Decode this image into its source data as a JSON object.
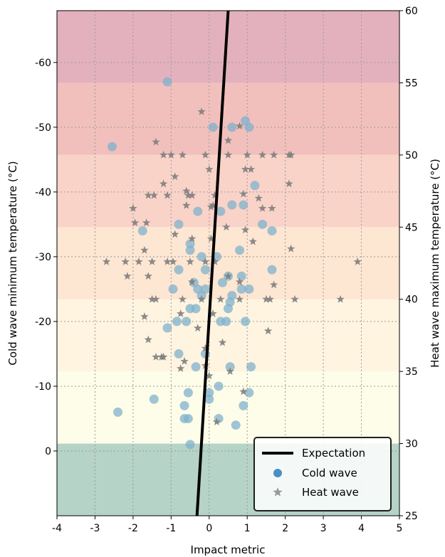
{
  "chart_data": {
    "type": "scatter",
    "title": "",
    "xlabel": "Impact metric",
    "ylabel_left": "Cold wave minimum temperature (°C)",
    "ylabel_right": "Heat wave maximum temperature (°C)",
    "xlim": [
      -4,
      5
    ],
    "ylim_left": [
      10,
      -68
    ],
    "ylim_right": [
      25,
      60
    ],
    "x_ticks": [
      -4,
      -3,
      -2,
      -1,
      0,
      1,
      2,
      3,
      4,
      5
    ],
    "left_y_ticks": [
      -60,
      -50,
      -40,
      -30,
      -20,
      -10,
      0
    ],
    "right_y_ticks": [
      25,
      30,
      35,
      40,
      45,
      50,
      55,
      60
    ],
    "grid": true,
    "legend_position": "bottom-right",
    "background_bands": [
      {
        "from": 25,
        "to": 30,
        "color": "#b5d3c6"
      },
      {
        "from": 30,
        "to": 35,
        "color": "#fdfde9"
      },
      {
        "from": 35,
        "to": 40,
        "color": "#fef4e0"
      },
      {
        "from": 40,
        "to": 45,
        "color": "#fde6d2"
      },
      {
        "from": 45,
        "to": 50,
        "color": "#f9d3c8"
      },
      {
        "from": 50,
        "to": 55,
        "color": "#f2c0bc"
      },
      {
        "from": 55,
        "to": 60,
        "color": "#e3b1bd"
      }
    ],
    "expectation_line": {
      "name": "Expectation",
      "left_axis_points": [
        [
          -0.32,
          10
        ],
        [
          0.5,
          -68
        ]
      ],
      "color": "#000000"
    },
    "series": [
      {
        "name": "Cold wave",
        "marker": "circle",
        "axis": "left",
        "color": "#7fb2cc",
        "legend_color": "#4a8fc4",
        "points": [
          [
            -1.1,
            -57
          ],
          [
            -2.55,
            -47
          ],
          [
            0.1,
            -50
          ],
          [
            0.6,
            -50
          ],
          [
            0.95,
            -51
          ],
          [
            1.05,
            -50
          ],
          [
            1.2,
            -41
          ],
          [
            0.9,
            -38
          ],
          [
            0.6,
            -38
          ],
          [
            0.3,
            -37
          ],
          [
            -0.3,
            -37
          ],
          [
            -0.8,
            -35
          ],
          [
            1.4,
            -35
          ],
          [
            1.65,
            -34
          ],
          [
            -1.75,
            -34
          ],
          [
            -0.5,
            -32
          ],
          [
            -0.5,
            -31
          ],
          [
            0.8,
            -31
          ],
          [
            -0.2,
            -30
          ],
          [
            0.2,
            -30
          ],
          [
            1.65,
            -28
          ],
          [
            -0.8,
            -28
          ],
          [
            -0.1,
            -28
          ],
          [
            0.85,
            -27
          ],
          [
            0.5,
            -27
          ],
          [
            -0.4,
            -26
          ],
          [
            0.35,
            -26
          ],
          [
            -0.3,
            -25
          ],
          [
            -0.1,
            -25
          ],
          [
            0.85,
            -25
          ],
          [
            1.05,
            -25
          ],
          [
            -0.95,
            -25
          ],
          [
            -0.2,
            -24
          ],
          [
            0.6,
            -24
          ],
          [
            0.55,
            -23
          ],
          [
            -0.5,
            -22
          ],
          [
            -0.35,
            -22
          ],
          [
            0.5,
            -22
          ],
          [
            -1.1,
            -19
          ],
          [
            -0.85,
            -20
          ],
          [
            -0.6,
            -20
          ],
          [
            0.3,
            -20
          ],
          [
            0.45,
            -20
          ],
          [
            0.95,
            -20
          ],
          [
            -0.8,
            -15
          ],
          [
            -0.1,
            -15
          ],
          [
            -0.35,
            -13
          ],
          [
            0.55,
            -13
          ],
          [
            1.1,
            -13
          ],
          [
            0.25,
            -10
          ],
          [
            -0.55,
            -9
          ],
          [
            0.0,
            -9
          ],
          [
            1.05,
            -9
          ],
          [
            -1.45,
            -8
          ],
          [
            0.0,
            -8
          ],
          [
            -0.65,
            -7
          ],
          [
            0.9,
            -7
          ],
          [
            -2.4,
            -6
          ],
          [
            -0.65,
            -5
          ],
          [
            -0.55,
            -5
          ],
          [
            0.25,
            -5
          ],
          [
            0.7,
            -4
          ],
          [
            -0.5,
            -1
          ]
        ]
      },
      {
        "name": "Heat wave",
        "marker": "star",
        "axis": "right",
        "color": "#7e7e7e",
        "legend_color": "#9a9a9a",
        "points": [
          [
            -0.2,
            53
          ],
          [
            0.8,
            52
          ],
          [
            -1.4,
            50.9
          ],
          [
            0.5,
            51
          ],
          [
            -1.2,
            50
          ],
          [
            -1.0,
            50
          ],
          [
            -0.7,
            50
          ],
          [
            -0.1,
            50
          ],
          [
            0.5,
            50
          ],
          [
            1.0,
            50
          ],
          [
            1.4,
            50
          ],
          [
            1.7,
            50
          ],
          [
            2.1,
            50
          ],
          [
            2.15,
            50
          ],
          [
            0.0,
            49
          ],
          [
            0.95,
            49
          ],
          [
            1.1,
            49
          ],
          [
            -0.9,
            48.5
          ],
          [
            -1.2,
            48
          ],
          [
            2.1,
            48
          ],
          [
            -0.6,
            47.5
          ],
          [
            -1.6,
            47.2
          ],
          [
            -1.45,
            47.2
          ],
          [
            -1.1,
            47.2
          ],
          [
            -0.55,
            47.2
          ],
          [
            -0.45,
            47.2
          ],
          [
            0.15,
            47.2
          ],
          [
            0.9,
            47.3
          ],
          [
            1.3,
            47
          ],
          [
            -2.0,
            46.3
          ],
          [
            -0.6,
            46.5
          ],
          [
            0.1,
            46.5
          ],
          [
            1.4,
            46.3
          ],
          [
            1.65,
            46.3
          ],
          [
            -1.95,
            45.3
          ],
          [
            -1.65,
            45.3
          ],
          [
            0.05,
            46.4
          ],
          [
            0.45,
            45
          ],
          [
            0.95,
            44.8
          ],
          [
            -0.9,
            44.5
          ],
          [
            -0.45,
            44.2
          ],
          [
            0.05,
            44.2
          ],
          [
            1.15,
            44
          ],
          [
            2.15,
            43.5
          ],
          [
            -1.7,
            43.4
          ],
          [
            -2.7,
            42.6
          ],
          [
            -2.2,
            42.6
          ],
          [
            -1.85,
            42.6
          ],
          [
            -1.5,
            42.6
          ],
          [
            -1.1,
            42.6
          ],
          [
            -0.95,
            42.6
          ],
          [
            -0.5,
            42.6
          ],
          [
            -0.1,
            42.6
          ],
          [
            0.15,
            42.6
          ],
          [
            -1.6,
            41.6
          ],
          [
            -2.15,
            41.6
          ],
          [
            0.5,
            41.6
          ],
          [
            -0.45,
            41.2
          ],
          [
            0.8,
            41.2
          ],
          [
            1.7,
            41
          ],
          [
            -1.5,
            40
          ],
          [
            -1.4,
            40
          ],
          [
            -0.7,
            40
          ],
          [
            -0.2,
            40
          ],
          [
            0.3,
            40
          ],
          [
            0.8,
            40
          ],
          [
            1.5,
            40
          ],
          [
            1.6,
            40
          ],
          [
            2.25,
            40
          ],
          [
            3.45,
            40
          ],
          [
            3.9,
            42.6
          ],
          [
            -0.75,
            39
          ],
          [
            0.1,
            39
          ],
          [
            -1.7,
            38.8
          ],
          [
            -0.3,
            38
          ],
          [
            1.55,
            37.8
          ],
          [
            -1.6,
            37.2
          ],
          [
            -1.2,
            36
          ],
          [
            -0.1,
            36.6
          ],
          [
            0.35,
            37
          ],
          [
            -1.25,
            36
          ],
          [
            -1.4,
            36
          ],
          [
            -0.65,
            35.7
          ],
          [
            -0.1,
            35.4
          ],
          [
            -0.75,
            35.2
          ],
          [
            0.0,
            34.7
          ],
          [
            0.55,
            35
          ],
          [
            0.9,
            33.6
          ],
          [
            0.2,
            31.5
          ]
        ]
      }
    ]
  },
  "legend": {
    "items": [
      {
        "label": "Expectation"
      },
      {
        "label": "Cold wave"
      },
      {
        "label": "Heat wave"
      }
    ]
  }
}
